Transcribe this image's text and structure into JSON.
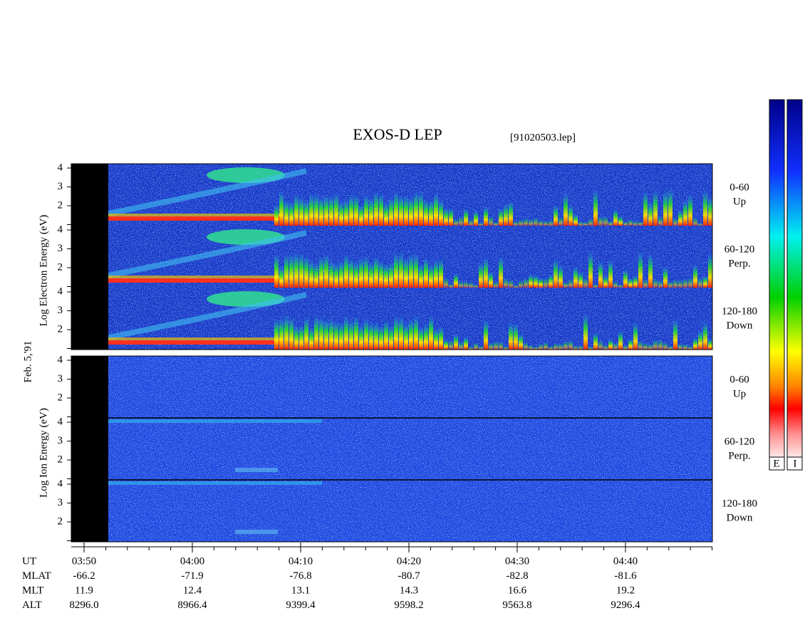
{
  "header": {
    "title": "EXOS-D LEP",
    "file": "[91020503.lep]"
  },
  "date": "Feb. 5,'91",
  "electron": {
    "axis_label": "Log  Electron  Energy (eV)",
    "yticks": [
      "4",
      "3",
      "2"
    ],
    "channels": [
      {
        "angle": "0-60",
        "dir": "Up"
      },
      {
        "angle": "60-120",
        "dir": "Perp."
      },
      {
        "angle": "120-180",
        "dir": "Down"
      }
    ]
  },
  "ion": {
    "axis_label": "Log  Ion  Energy (eV)",
    "yticks": [
      "4",
      "3",
      "2"
    ],
    "channels": [
      {
        "angle": "0-60",
        "dir": "Up"
      },
      {
        "angle": "60-120",
        "dir": "Perp."
      },
      {
        "angle": "120-180",
        "dir": "Down"
      }
    ]
  },
  "time_axis": {
    "rows": [
      {
        "label": "UT",
        "values": [
          "03:50",
          "04:00",
          "04:10",
          "04:20",
          "04:30",
          "04:40"
        ]
      },
      {
        "label": "MLAT",
        "values": [
          "-66.2",
          "-71.9",
          "-76.8",
          "-80.7",
          "-82.8",
          "-81.6"
        ]
      },
      {
        "label": "MLT",
        "values": [
          "11.9",
          "12.4",
          "13.1",
          "14.3",
          "16.6",
          "19.2"
        ]
      },
      {
        "label": "ALT",
        "values": [
          "8296.0",
          "8966.4",
          "9399.4",
          "9598.2",
          "9563.8",
          "9296.4"
        ]
      }
    ]
  },
  "colorbar": {
    "labels": [
      "E",
      "I"
    ]
  }
}
